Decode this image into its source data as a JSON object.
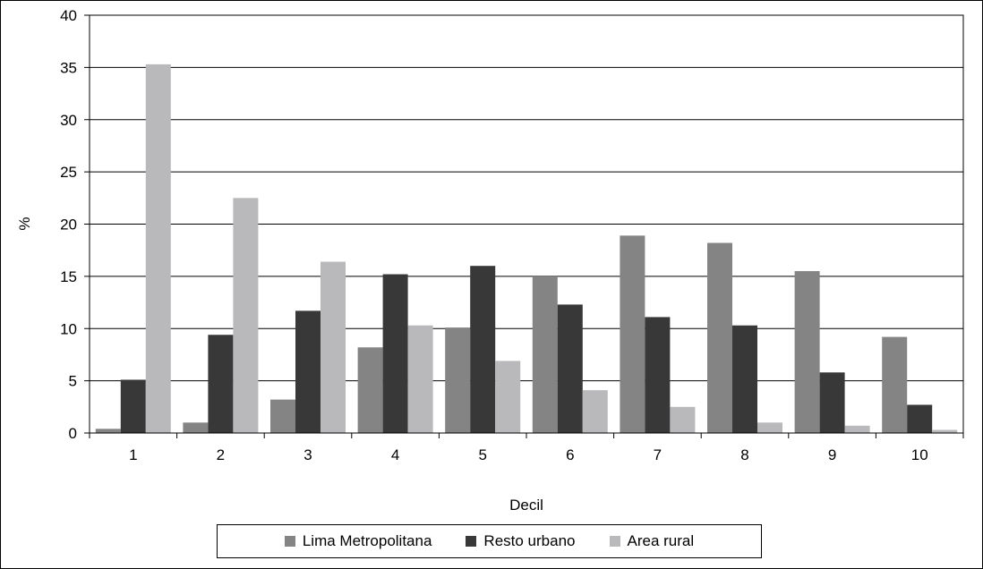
{
  "chart_data": {
    "type": "bar",
    "xlabel": "Decil",
    "ylabel": "%",
    "ylim": [
      0,
      40
    ],
    "yticks": [
      0,
      5,
      10,
      15,
      20,
      25,
      30,
      35,
      40
    ],
    "categories": [
      "1",
      "2",
      "3",
      "4",
      "5",
      "6",
      "7",
      "8",
      "9",
      "10"
    ],
    "series": [
      {
        "name": "Lima Metropolitana",
        "color": "#848484",
        "values": [
          0.4,
          1.0,
          3.2,
          8.2,
          10.1,
          15.0,
          18.9,
          18.2,
          15.5,
          9.2
        ]
      },
      {
        "name": "Resto urbano",
        "color": "#383838",
        "values": [
          5.1,
          9.4,
          11.7,
          15.2,
          16.0,
          12.3,
          11.1,
          10.3,
          5.8,
          2.7
        ]
      },
      {
        "name": "Area rural",
        "color": "#b9b9bb",
        "values": [
          35.3,
          22.5,
          16.4,
          10.3,
          6.9,
          4.1,
          2.5,
          1.0,
          0.7,
          0.3
        ]
      }
    ],
    "grid": true,
    "legend_position": "bottom"
  }
}
